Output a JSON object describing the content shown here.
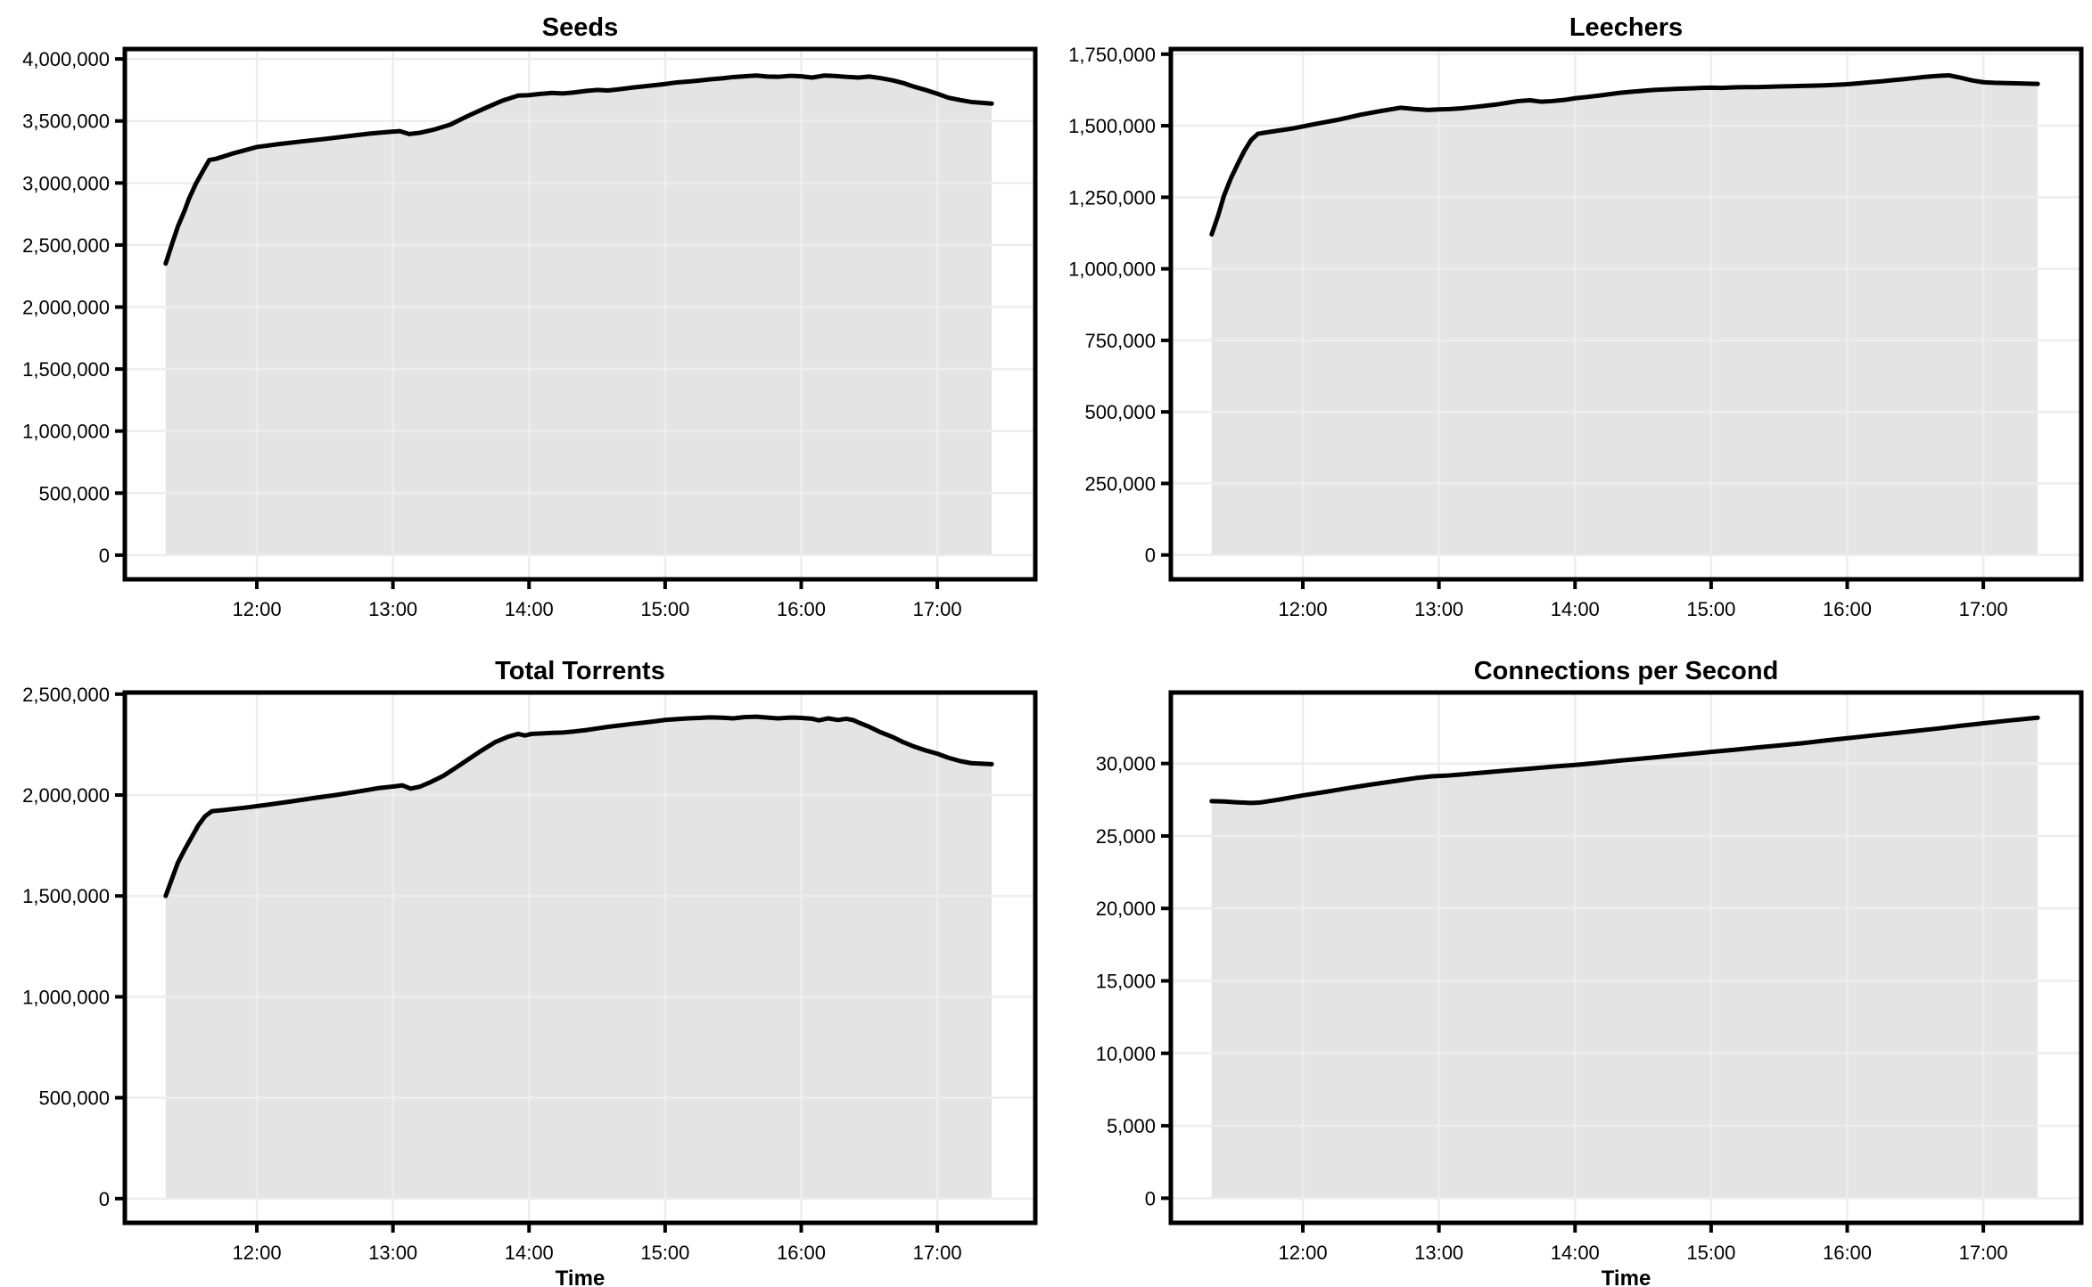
{
  "figure": {
    "background": "#ffffff",
    "line_color": "#000000",
    "fill_color": "#e4e4e4",
    "grid_color": "#ededed",
    "spine_color": "#000000",
    "tick_label_color": "#000000",
    "title_color": "#000000"
  },
  "chart_data": [
    {
      "type": "area",
      "title": "Seeds",
      "xlabel": "",
      "ylabel": "",
      "grid": true,
      "legend": false,
      "xlim": [
        11.03,
        17.72
      ],
      "ylim": [
        -195000,
        4080000
      ],
      "xticks": [
        12,
        13,
        14,
        15,
        16,
        17
      ],
      "xtick_labels": [
        "12:00",
        "13:00",
        "14:00",
        "15:00",
        "16:00",
        "17:00"
      ],
      "yticks": [
        0,
        500000,
        1000000,
        1500000,
        2000000,
        2500000,
        3000000,
        3500000,
        4000000
      ],
      "x": [
        11.33,
        11.38,
        11.42,
        11.47,
        11.5,
        11.55,
        11.6,
        11.65,
        11.7,
        11.83,
        12.0,
        12.17,
        12.33,
        12.5,
        12.67,
        12.83,
        12.95,
        13.05,
        13.12,
        13.2,
        13.3,
        13.42,
        13.55,
        13.67,
        13.8,
        13.92,
        14.0,
        14.08,
        14.17,
        14.25,
        14.33,
        14.42,
        14.5,
        14.58,
        14.67,
        14.75,
        14.83,
        14.92,
        15.0,
        15.08,
        15.17,
        15.25,
        15.33,
        15.42,
        15.5,
        15.58,
        15.67,
        15.75,
        15.83,
        15.92,
        16.0,
        16.08,
        16.17,
        16.25,
        16.33,
        16.42,
        16.5,
        16.58,
        16.67,
        16.75,
        16.83,
        16.92,
        17.0,
        17.08,
        17.17,
        17.25,
        17.33,
        17.4
      ],
      "y": [
        2350000,
        2520000,
        2650000,
        2780000,
        2870000,
        2990000,
        3090000,
        3185000,
        3195000,
        3240000,
        3290000,
        3315000,
        3335000,
        3355000,
        3378000,
        3398000,
        3410000,
        3418000,
        3395000,
        3405000,
        3430000,
        3470000,
        3540000,
        3600000,
        3662000,
        3705000,
        3708000,
        3718000,
        3726000,
        3722000,
        3730000,
        3742000,
        3750000,
        3746000,
        3757000,
        3768000,
        3777000,
        3788000,
        3798000,
        3810000,
        3818000,
        3826000,
        3836000,
        3844000,
        3854000,
        3860000,
        3866000,
        3858000,
        3856000,
        3864000,
        3860000,
        3850000,
        3866000,
        3863000,
        3856000,
        3850000,
        3858000,
        3846000,
        3828000,
        3806000,
        3776000,
        3748000,
        3720000,
        3688000,
        3668000,
        3653000,
        3646000,
        3640000
      ]
    },
    {
      "type": "area",
      "title": "Leechers",
      "xlabel": "",
      "ylabel": "",
      "grid": true,
      "legend": false,
      "xlim": [
        11.03,
        17.72
      ],
      "ylim": [
        -85000,
        1768000
      ],
      "xticks": [
        12,
        13,
        14,
        15,
        16,
        17
      ],
      "xtick_labels": [
        "12:00",
        "13:00",
        "14:00",
        "15:00",
        "16:00",
        "17:00"
      ],
      "yticks": [
        0,
        250000,
        500000,
        750000,
        1000000,
        1250000,
        1500000,
        1750000
      ],
      "x": [
        11.33,
        11.38,
        11.42,
        11.47,
        11.52,
        11.57,
        11.62,
        11.67,
        11.75,
        11.92,
        12.08,
        12.25,
        12.42,
        12.58,
        12.72,
        12.83,
        12.92,
        13.0,
        13.08,
        13.17,
        13.25,
        13.33,
        13.42,
        13.5,
        13.58,
        13.67,
        13.75,
        13.83,
        13.92,
        14.0,
        14.08,
        14.17,
        14.25,
        14.33,
        14.42,
        14.5,
        14.58,
        14.67,
        14.75,
        14.83,
        14.92,
        15.0,
        15.08,
        15.17,
        15.25,
        15.33,
        15.42,
        15.5,
        15.58,
        15.67,
        15.75,
        15.83,
        15.92,
        16.0,
        16.08,
        16.17,
        16.25,
        16.33,
        16.42,
        16.5,
        16.58,
        16.67,
        16.75,
        16.83,
        16.92,
        17.0,
        17.08,
        17.17,
        17.25,
        17.33,
        17.4
      ],
      "y": [
        1120000,
        1190000,
        1255000,
        1315000,
        1365000,
        1412000,
        1450000,
        1472000,
        1478000,
        1490000,
        1505000,
        1520000,
        1538000,
        1552000,
        1563000,
        1558000,
        1555000,
        1557000,
        1558000,
        1561000,
        1565000,
        1569000,
        1574000,
        1580000,
        1586000,
        1589000,
        1584000,
        1586000,
        1590000,
        1596000,
        1600000,
        1605000,
        1610000,
        1615000,
        1619000,
        1622000,
        1625000,
        1627000,
        1629000,
        1630000,
        1632000,
        1633000,
        1632000,
        1634000,
        1635000,
        1635000,
        1636000,
        1637000,
        1638000,
        1639000,
        1640000,
        1641000,
        1643000,
        1645000,
        1648000,
        1652000,
        1655000,
        1659000,
        1663000,
        1667000,
        1671000,
        1674000,
        1676000,
        1668000,
        1658000,
        1652000,
        1650000,
        1649000,
        1648000,
        1647000,
        1646000
      ]
    },
    {
      "type": "area",
      "title": "Total Torrents",
      "xlabel": "Time",
      "ylabel": "",
      "grid": true,
      "legend": false,
      "xlim": [
        11.03,
        17.72
      ],
      "ylim": [
        -120000,
        2508000
      ],
      "xticks": [
        12,
        13,
        14,
        15,
        16,
        17
      ],
      "xtick_labels": [
        "12:00",
        "13:00",
        "14:00",
        "15:00",
        "16:00",
        "17:00"
      ],
      "yticks": [
        0,
        500000,
        1000000,
        1500000,
        2000000,
        2500000
      ],
      "x": [
        11.33,
        11.38,
        11.42,
        11.47,
        11.52,
        11.57,
        11.62,
        11.67,
        11.75,
        11.92,
        12.08,
        12.25,
        12.42,
        12.58,
        12.75,
        12.9,
        13.0,
        13.07,
        13.13,
        13.2,
        13.28,
        13.37,
        13.45,
        13.55,
        13.65,
        13.75,
        13.85,
        13.92,
        13.97,
        14.02,
        14.08,
        14.17,
        14.25,
        14.33,
        14.42,
        14.5,
        14.58,
        14.67,
        14.75,
        14.83,
        14.92,
        15.0,
        15.08,
        15.17,
        15.25,
        15.33,
        15.42,
        15.5,
        15.58,
        15.67,
        15.75,
        15.83,
        15.92,
        16.0,
        16.08,
        16.13,
        16.2,
        16.27,
        16.33,
        16.38,
        16.42,
        16.5,
        16.58,
        16.67,
        16.75,
        16.83,
        16.92,
        17.0,
        17.08,
        17.17,
        17.25,
        17.33,
        17.4
      ],
      "y": [
        1500000,
        1592000,
        1665000,
        1730000,
        1790000,
        1850000,
        1895000,
        1920000,
        1925000,
        1938000,
        1952000,
        1968000,
        1985000,
        2000000,
        2018000,
        2035000,
        2042000,
        2048000,
        2032000,
        2042000,
        2065000,
        2095000,
        2130000,
        2175000,
        2220000,
        2262000,
        2290000,
        2303000,
        2295000,
        2303000,
        2305000,
        2308000,
        2310000,
        2315000,
        2322000,
        2330000,
        2338000,
        2345000,
        2352000,
        2358000,
        2365000,
        2372000,
        2376000,
        2380000,
        2382000,
        2385000,
        2383000,
        2380000,
        2386000,
        2388000,
        2384000,
        2380000,
        2384000,
        2382000,
        2378000,
        2370000,
        2380000,
        2372000,
        2378000,
        2372000,
        2360000,
        2338000,
        2312000,
        2288000,
        2262000,
        2240000,
        2220000,
        2205000,
        2185000,
        2168000,
        2158000,
        2155000,
        2153000
      ]
    },
    {
      "type": "area",
      "title": "Connections per Second",
      "xlabel": "Time",
      "ylabel": "",
      "grid": true,
      "legend": false,
      "xlim": [
        11.03,
        17.72
      ],
      "ylim": [
        -1700,
        34900
      ],
      "xticks": [
        12,
        13,
        14,
        15,
        16,
        17
      ],
      "xtick_labels": [
        "12:00",
        "13:00",
        "14:00",
        "15:00",
        "16:00",
        "17:00"
      ],
      "yticks": [
        0,
        5000,
        10000,
        15000,
        20000,
        25000,
        30000
      ],
      "x": [
        11.33,
        11.42,
        11.52,
        11.62,
        11.68,
        11.83,
        12.0,
        12.17,
        12.33,
        12.5,
        12.67,
        12.83,
        12.95,
        13.05,
        13.17,
        13.33,
        13.5,
        13.67,
        13.83,
        14.0,
        14.17,
        14.33,
        14.5,
        14.67,
        14.83,
        15.0,
        15.17,
        15.33,
        15.5,
        15.67,
        15.83,
        16.0,
        16.17,
        16.33,
        16.5,
        16.67,
        16.83,
        17.0,
        17.17,
        17.33,
        17.4
      ],
      "y": [
        27400,
        27380,
        27320,
        27280,
        27300,
        27520,
        27800,
        28050,
        28300,
        28550,
        28780,
        29000,
        29120,
        29160,
        29250,
        29380,
        29520,
        29650,
        29780,
        29900,
        30050,
        30200,
        30350,
        30500,
        30650,
        30800,
        30950,
        31100,
        31250,
        31400,
        31580,
        31750,
        31920,
        32080,
        32250,
        32420,
        32600,
        32780,
        32950,
        33100,
        33160
      ]
    }
  ]
}
